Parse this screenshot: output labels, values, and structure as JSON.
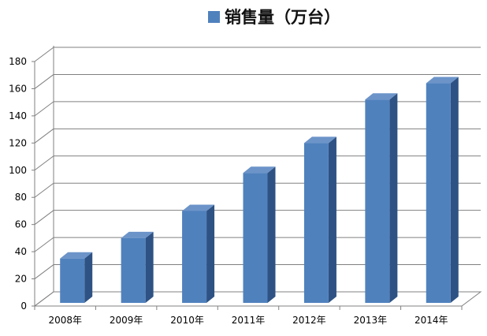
{
  "colors": {
    "bar_front": "#4F81BD",
    "bar_side": "#2E5283",
    "bar_top": "#6C94C9",
    "gridline": "#808080"
  },
  "chart_data": {
    "type": "bar",
    "categories": [
      "2008年",
      "2009年",
      "2010年",
      "2011年",
      "2012年",
      "2013年",
      "2014年"
    ],
    "series": [
      {
        "name": "销售量（万台）",
        "values": [
          35,
          50,
          70,
          98,
          120,
          152,
          164
        ]
      }
    ],
    "ylim": [
      0,
      180
    ],
    "yticks": [
      0,
      20,
      40,
      60,
      80,
      100,
      120,
      140,
      160,
      180
    ],
    "grid": true,
    "legend_position": "top",
    "style": "3d-column"
  }
}
